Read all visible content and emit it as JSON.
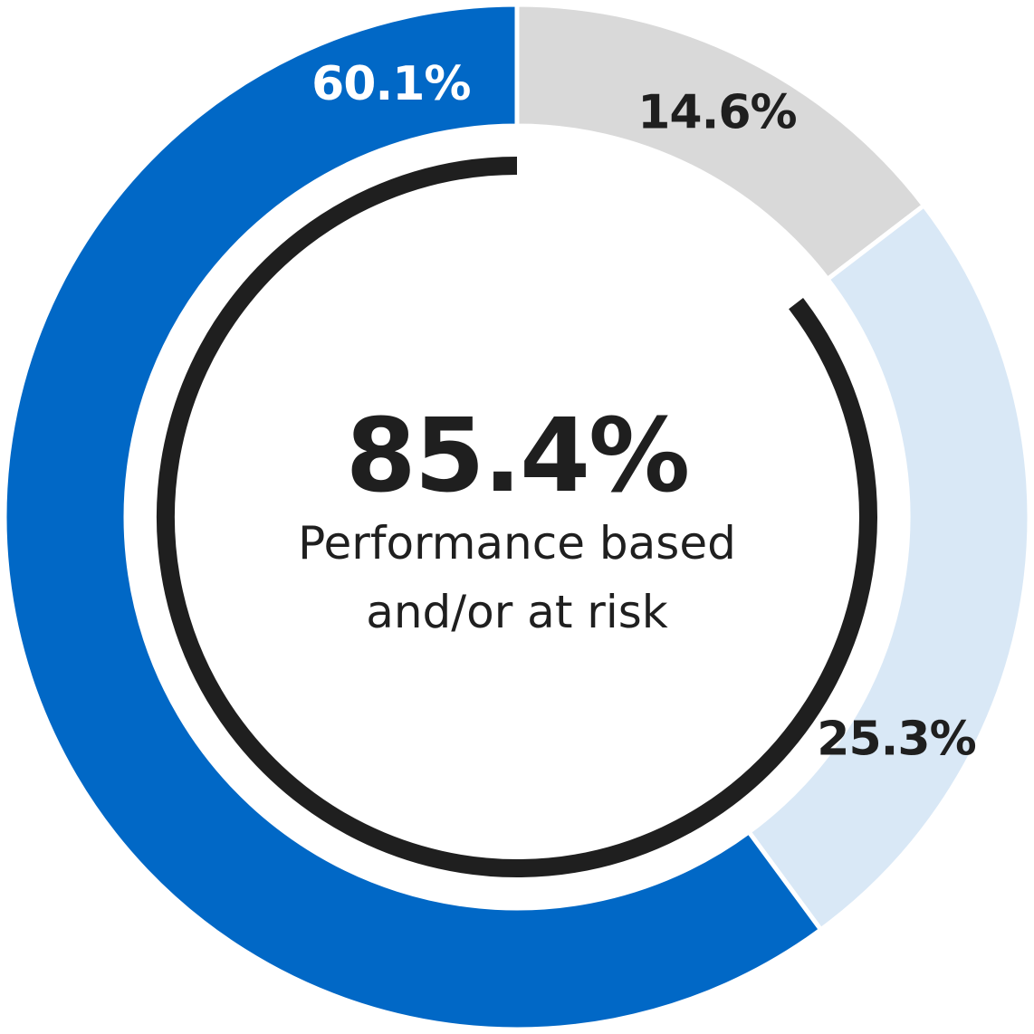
{
  "chart_data": {
    "type": "pie",
    "variant": "donut",
    "categories": [
      "",
      "",
      ""
    ],
    "values": [
      14.6,
      25.3,
      60.1
    ],
    "value_labels": [
      "14.6%",
      "25.3%",
      "60.1%"
    ],
    "colors": [
      "#d9d9d9",
      "#d9e8f6",
      "#0168c6"
    ],
    "label_colors": [
      "#1f1f1f",
      "#1f1f1f",
      "#ffffff"
    ],
    "highlight": {
      "value": 85.4,
      "label": "85.4%",
      "caption_lines": [
        "Performance based",
        "and/or at risk"
      ],
      "covers": [
        1,
        2
      ],
      "color": "#1f1f1f"
    }
  }
}
